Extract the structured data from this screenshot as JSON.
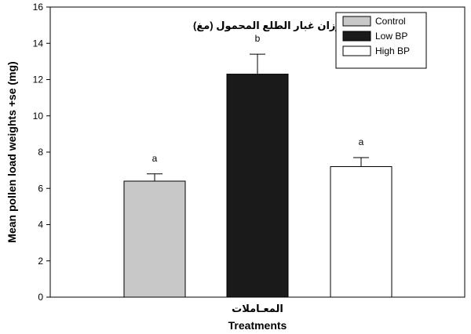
{
  "chart_data": {
    "type": "bar",
    "categories": [
      "Control",
      "Low BP",
      "High BP"
    ],
    "values": [
      6.4,
      12.3,
      7.2
    ],
    "errors": [
      0.4,
      1.1,
      0.5
    ],
    "significance": [
      "a",
      "b",
      "a"
    ],
    "colors": [
      "#c8c8c8",
      "#1a1a1a",
      "#ffffff"
    ],
    "ylim": [
      0,
      16
    ],
    "yticks": [
      0,
      2,
      4,
      6,
      8,
      10,
      12,
      14,
      16
    ],
    "ylabel": "Mean pollen load weights +se (mg)",
    "ylabel_arabic": "متوسط أوزان غبار الطلع المحمول (مغ)",
    "xlabel": "Treatments",
    "xlabel_arabic": "المعـاملات",
    "legend_position": "top-right",
    "grid": false
  }
}
